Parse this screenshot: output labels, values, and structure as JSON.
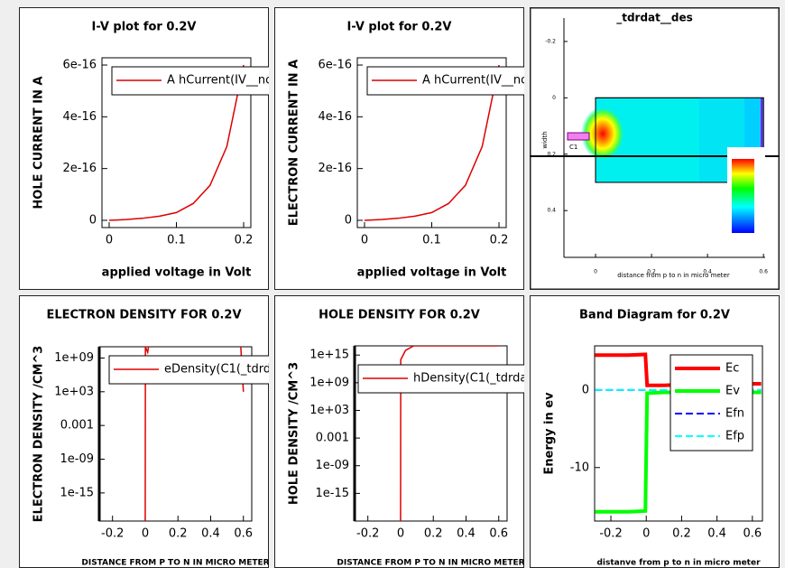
{
  "chart_data": [
    {
      "type": "line",
      "title": "I-V plot for 0.2V",
      "ylabel": "HOLE CURRENT IN A",
      "xlabel": "applied voltage in Volt",
      "legend": "upper left",
      "x": [
        0,
        0.025,
        0.05,
        0.075,
        0.1,
        0.125,
        0.15,
        0.175,
        0.2
      ],
      "series": [
        {
          "name": "A hCurrent(IV__no",
          "color": "#dd0000",
          "values": [
            0,
            3e-18,
            8e-18,
            1.6e-17,
            3e-17,
            6.5e-17,
            1.35e-16,
            2.85e-16,
            6e-16
          ]
        }
      ],
      "xlim": [
        -0.0107,
        0.2107
      ],
      "ylim": [
        -2.8e-17,
        6.28e-16
      ],
      "xticks": [
        0,
        0.1,
        0.2
      ],
      "yticks": [
        0,
        2e-16,
        4e-16,
        6e-16
      ]
    },
    {
      "type": "line",
      "title": "I-V plot for 0.2V",
      "ylabel": "ELECTRON CURRENT IN A",
      "xlabel": "applied voltage in Volt",
      "legend": "upper left",
      "x": [
        0,
        0.025,
        0.05,
        0.075,
        0.1,
        0.125,
        0.15,
        0.175,
        0.2
      ],
      "series": [
        {
          "name": "A hCurrent(IV__no",
          "color": "#dd0000",
          "values": [
            0,
            3e-18,
            8e-18,
            1.6e-17,
            3e-17,
            6.5e-17,
            1.35e-16,
            2.85e-16,
            6e-16
          ]
        }
      ],
      "xlim": [
        -0.0107,
        0.2107
      ],
      "ylim": [
        -2.8e-17,
        6.28e-16
      ],
      "xticks": [
        0,
        0.1,
        0.2
      ],
      "yticks": [
        0,
        2e-16,
        4e-16,
        6e-16
      ]
    },
    {
      "type": "contour",
      "title": "_tdrdat__des",
      "ylabel": "width",
      "xlabel": "distance from p to n in micro meter",
      "annotation": "C1",
      "xlim": [
        -0.113,
        0.606
      ],
      "ylim": [
        0.566,
        -0.283
      ],
      "xticks": [
        0,
        0.2,
        0.4,
        0.6
      ],
      "yticks": [
        -0.2,
        0,
        0.2,
        0.4
      ]
    },
    {
      "type": "line",
      "title": "ELECTRON DENSITY FOR 0.2V",
      "ylabel": "ELECTRON DENSITY /CM^3",
      "xlabel": "DISTANCE FROM P TO N IN MICRO METER",
      "legend": "upper left",
      "log_y": true,
      "x": [
        0,
        0.001,
        0.015,
        0.03,
        0.58,
        0.6
      ],
      "series": [
        {
          "name": "eDensity(C1(_tdrd",
          "color": "#dd0000",
          "values": [
            1e-20,
            100000000000.0,
            10000000000.0,
            10000000000000.0,
            10000000000000.0,
            1000
          ]
        }
      ],
      "xlim": [
        -0.281,
        0.651
      ],
      "ylim": [
        1e-20,
        100000000000.0
      ],
      "xticks": [
        -0.2,
        0,
        0.2,
        0.4,
        0.6
      ],
      "yticks": [
        1e-15,
        {
          "value": 1e-09,
          "label": "1e-09"
        },
        0.001,
        {
          "value": 1000,
          "label": "1e+03"
        },
        {
          "value": 1000000000,
          "label": "1e+09"
        }
      ]
    },
    {
      "type": "line",
      "title": "HOLE DENSITY FOR 0.2V",
      "ylabel": "HOLE DENSITY /CM^3",
      "xlabel": "DISTANCE FROM P TO N IN MICRO METER",
      "legend": "upper left",
      "log_y": true,
      "x": [
        0,
        0.001,
        0.03,
        0.08,
        0.6
      ],
      "series": [
        {
          "name": "hDensity(C1(_tdrda",
          "color": "#dd0000",
          "values": [
            1e-21,
            100000000000000.0,
            1e+16,
            1e+17,
            1e+17
          ]
        }
      ],
      "xlim": [
        -0.281,
        0.651
      ],
      "ylim": [
        1e-21,
        1e+17
      ],
      "xticks": [
        -0.2,
        0,
        0.2,
        0.4,
        0.6
      ],
      "yticks": [
        1e-15,
        {
          "value": 1e-09,
          "label": "1e-09"
        },
        0.001,
        {
          "value": 1000,
          "label": "1e+03"
        },
        {
          "value": 1000000000,
          "label": "1e+09"
        },
        {
          "value": 1000000000000000.0,
          "label": "1e+15"
        }
      ]
    },
    {
      "type": "line",
      "title": "Band Diagram for 0.2V",
      "ylabel": "Energy in ev",
      "xlabel": "distanve from p to n in micro meter",
      "legend": "upper right",
      "x": [
        -0.29,
        -0.2,
        -0.1,
        -0.005,
        0.005,
        0.1,
        0.2,
        0.3,
        0.4,
        0.5,
        0.6,
        0.65
      ],
      "series": [
        {
          "name": "Ec",
          "color": "#ff0000",
          "values": [
            4.5,
            4.5,
            4.5,
            4.6,
            0.6,
            0.6,
            0.7,
            0.8,
            0.8,
            0.8,
            0.8,
            0.8
          ]
        },
        {
          "name": "Ev",
          "color": "#00ff00",
          "values": [
            -15.7,
            -15.7,
            -15.7,
            -15.6,
            -0.4,
            -0.3,
            -0.3,
            -0.3,
            -0.3,
            -0.3,
            -0.3,
            -0.3
          ]
        },
        {
          "name": "Efn",
          "color": "#0000ff",
          "dashed": true,
          "values": [
            0,
            0,
            0,
            0,
            0,
            0,
            0,
            0,
            0,
            0,
            0,
            0
          ]
        },
        {
          "name": "Efp",
          "color": "#00ffff",
          "dashed": true,
          "values": [
            0,
            0,
            0,
            0,
            0,
            0,
            0,
            0,
            0,
            0,
            0,
            0
          ]
        }
      ],
      "xlim": [
        -0.292,
        0.657
      ],
      "ylim": [
        -16.9,
        5.7
      ],
      "xticks": [
        -0.2,
        0,
        0.2,
        0.4,
        0.6
      ],
      "yticks": [
        -10,
        0
      ]
    }
  ]
}
